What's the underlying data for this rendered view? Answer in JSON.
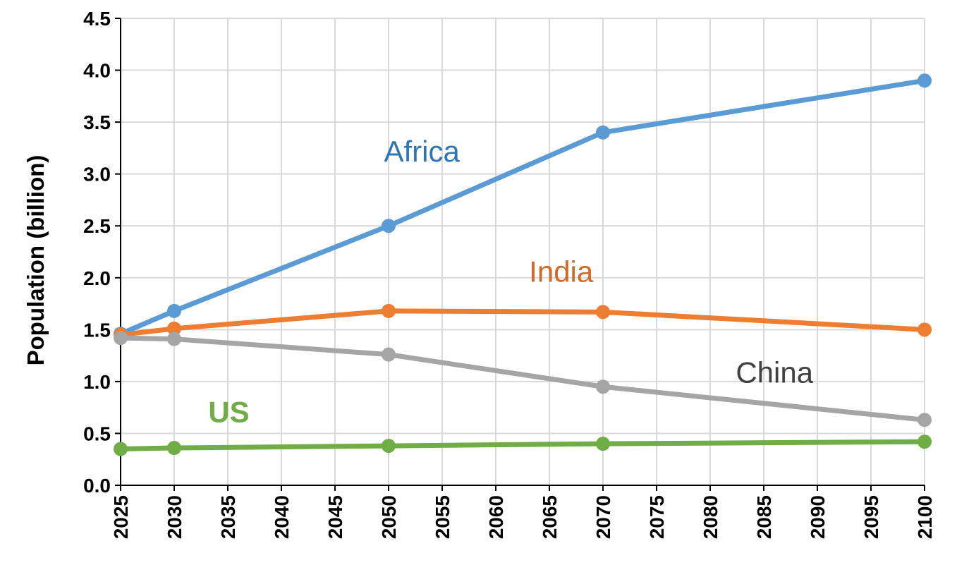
{
  "chart_data": {
    "type": "line",
    "title": "",
    "xlabel": "",
    "ylabel": "Population (billion)",
    "xlim": [
      2025,
      2100
    ],
    "ylim": [
      0,
      4.5
    ],
    "x_ticks": [
      "2025",
      "2030",
      "2035",
      "2040",
      "2045",
      "2050",
      "2055",
      "2060",
      "2065",
      "2070",
      "2075",
      "2080",
      "2085",
      "2090",
      "2095",
      "2100"
    ],
    "y_ticks": [
      "0.0",
      "0.5",
      "1.0",
      "1.5",
      "2.0",
      "2.5",
      "3.0",
      "3.5",
      "4.0",
      "4.5"
    ],
    "grid": true,
    "legend": "none",
    "series": [
      {
        "name": "Africa",
        "color": "#5b9bd5",
        "label_weight": "normal",
        "label_color": "#2e75b6",
        "x": [
          2025,
          2030,
          2050,
          2070,
          2100
        ],
        "values": [
          1.46,
          1.68,
          2.5,
          3.4,
          3.9
        ]
      },
      {
        "name": "India",
        "color": "#ed7d31",
        "label_weight": "normal",
        "label_color": "#d06a28",
        "x": [
          2025,
          2030,
          2050,
          2070,
          2100
        ],
        "values": [
          1.45,
          1.51,
          1.68,
          1.67,
          1.5
        ]
      },
      {
        "name": "China",
        "color": "#a5a5a5",
        "label_weight": "normal",
        "label_color": "#404040",
        "x": [
          2025,
          2030,
          2050,
          2070,
          2100
        ],
        "values": [
          1.42,
          1.41,
          1.26,
          0.95,
          0.63
        ]
      },
      {
        "name": "US",
        "color": "#70ad47",
        "label_weight": "bold",
        "label_color": "#70ad47",
        "x": [
          2025,
          2030,
          2050,
          2070,
          2100
        ],
        "values": [
          0.35,
          0.36,
          0.38,
          0.4,
          0.42
        ]
      }
    ]
  }
}
